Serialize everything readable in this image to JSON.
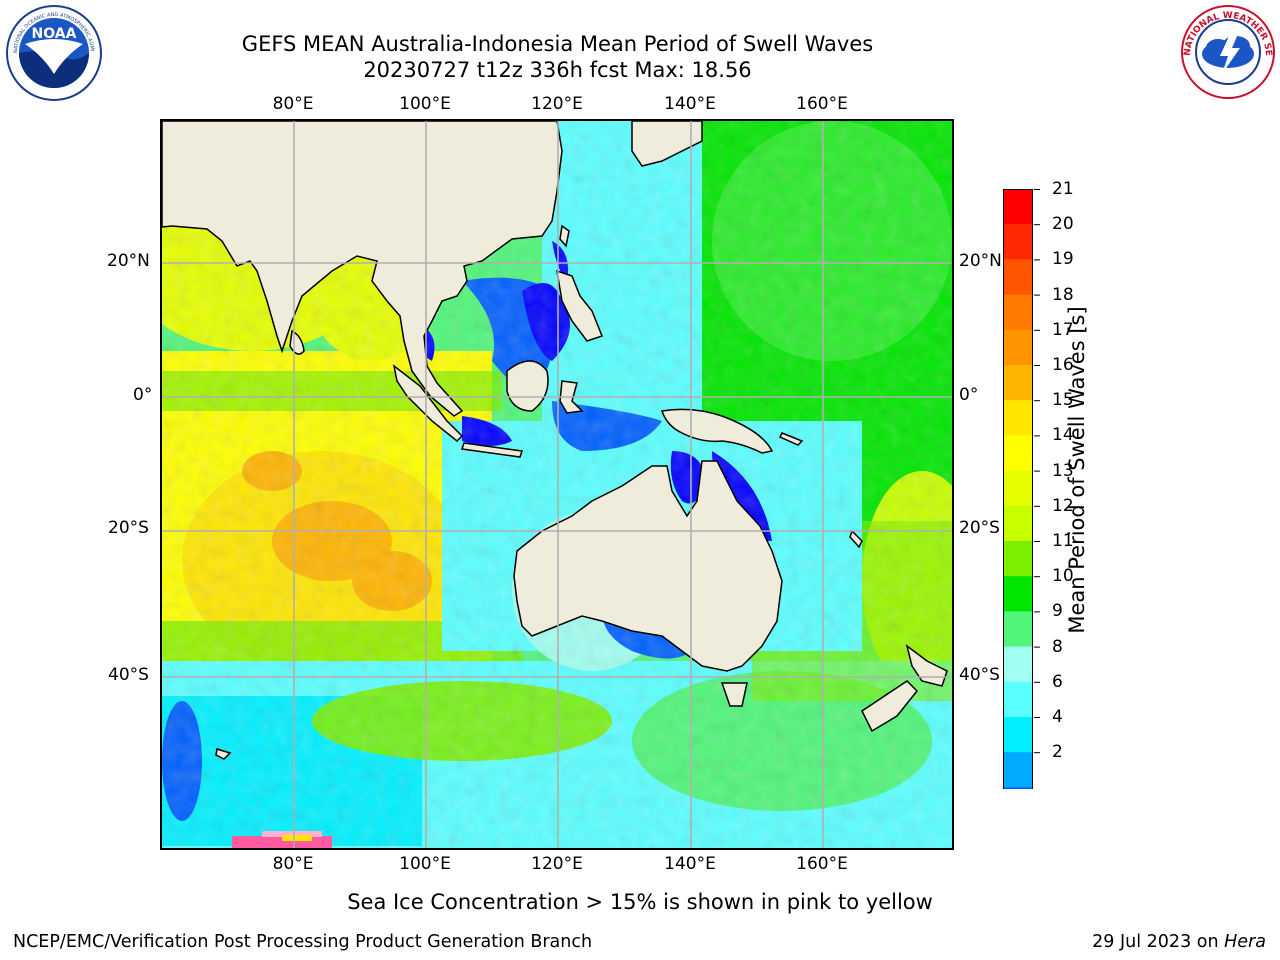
{
  "header": {
    "title_line1": "GEFS MEAN Australia-Indonesia Mean Period of Swell Waves",
    "title_line2": "20230727 t12z 336h fcst   Max: 18.56"
  },
  "logos": {
    "left": {
      "name": "NOAA",
      "text": "NOAA",
      "ring_text": "NATIONAL OCEANIC AND ATMOSPHERIC ADMINISTRATION · U.S. DEPARTMENT OF COMMERCE"
    },
    "right": {
      "name": "National Weather Service",
      "ring_text": "NATIONAL WEATHER SERVICE"
    }
  },
  "map": {
    "lon_labels": [
      "80°E",
      "100°E",
      "120°E",
      "140°E",
      "160°E"
    ],
    "lat_labels": [
      "20°N",
      "0°",
      "20°S",
      "40°S"
    ],
    "background_land_color": "#efecdc",
    "gridline_color": "#b0b0b0"
  },
  "colorbar": {
    "label": "Mean Period of Swell Waves [s]",
    "ticks": [
      "21",
      "20",
      "19",
      "18",
      "17",
      "16",
      "15",
      "14",
      "13",
      "12",
      "11",
      "10",
      "9",
      "8",
      "6",
      "4",
      "2"
    ],
    "colors_top_to_bottom": [
      "#ff0000",
      "#ff2800",
      "#ff5500",
      "#ff7a00",
      "#ff9400",
      "#ffb400",
      "#ffe600",
      "#ffff00",
      "#e6ff00",
      "#c8ff00",
      "#7cf000",
      "#00e600",
      "#50f57a",
      "#a0fff0",
      "#5affff",
      "#00f0ff",
      "#00aaff",
      "#0060ff",
      "#0000ff"
    ]
  },
  "caption": "Sea Ice Concentration > 15% is shown in pink to yellow",
  "footer": {
    "left": "NCEP/EMC/Verification Post Processing Product Generation Branch",
    "right_date": "29 Jul 2023 on",
    "right_machine": "Hera"
  }
}
